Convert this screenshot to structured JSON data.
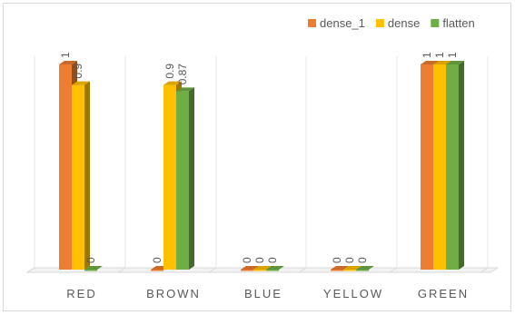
{
  "chart_data": {
    "type": "bar",
    "title": "",
    "xlabel": "",
    "ylabel": "",
    "categories": [
      "RED",
      "BROWN",
      "BLUE",
      "YELLOW",
      "GREEN"
    ],
    "series": [
      {
        "name": "dense_1",
        "color": "#ed7d31",
        "values": [
          1,
          0,
          0,
          0,
          1
        ],
        "labels": [
          "1",
          "0",
          "0",
          "0",
          "1"
        ]
      },
      {
        "name": "dense",
        "color": "#ffc000",
        "values": [
          0.9,
          0.9,
          0,
          0,
          1
        ],
        "labels": [
          "0.9",
          "0.9",
          "0",
          "0",
          "1"
        ]
      },
      {
        "name": "flatten",
        "color": "#70ad47",
        "values": [
          0,
          0.87,
          0,
          0,
          1
        ],
        "labels": [
          "0",
          "0.87",
          "0",
          "0",
          "1"
        ]
      }
    ],
    "ylim": [
      0,
      1
    ],
    "grid": false,
    "legend_position": "top-right",
    "style": "3d-clustered-column"
  }
}
